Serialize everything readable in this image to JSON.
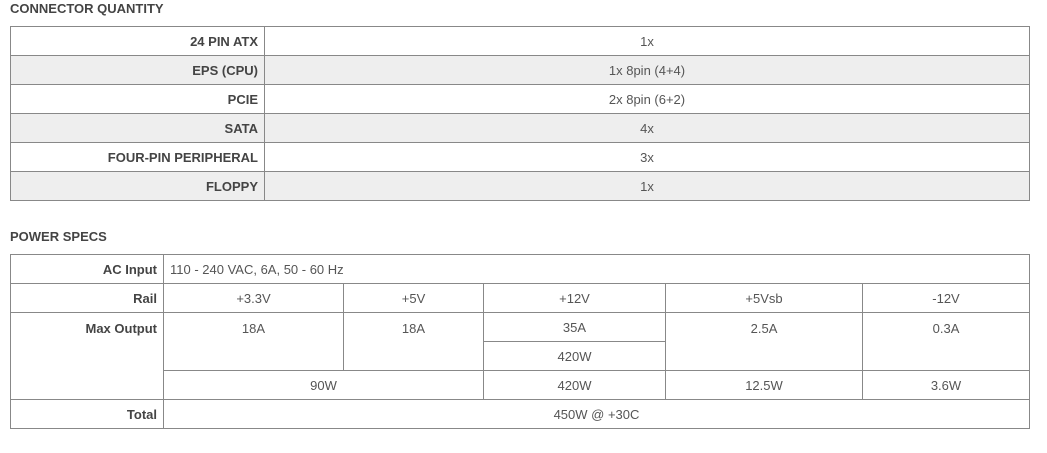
{
  "connector_quantity": {
    "title": "CONNECTOR QUANTITY",
    "rows": [
      {
        "label": "24 PIN ATX",
        "value": "1x"
      },
      {
        "label": "EPS (CPU)",
        "value": "1x 8pin (4+4)"
      },
      {
        "label": "PCIE",
        "value": "2x 8pin (6+2)"
      },
      {
        "label": "SATA",
        "value": "4x"
      },
      {
        "label": "FOUR-PIN PERIPHERAL",
        "value": "3x"
      },
      {
        "label": "FLOPPY",
        "value": "1x"
      }
    ]
  },
  "power_specs": {
    "title": "POWER SPECS",
    "ac_input_label": "AC Input",
    "ac_input_value": "110 - 240 VAC, 6A, 50 - 60 Hz",
    "rail_label": "Rail",
    "rails": [
      "+3.3V",
      "+5V",
      "+12V",
      "+5Vsb",
      "-12V"
    ],
    "max_output_label": "Max Output",
    "max_current": [
      "18A",
      "18A",
      "35A",
      "2.5A",
      "0.3A"
    ],
    "rail_12v_watt": "420W",
    "watts": {
      "combined_3v3_5v": "90W",
      "v12": "420W",
      "v5sb": "12.5W",
      "vneg12": "3.6W"
    },
    "total_label": "Total",
    "total_value": "450W @ +30C"
  }
}
